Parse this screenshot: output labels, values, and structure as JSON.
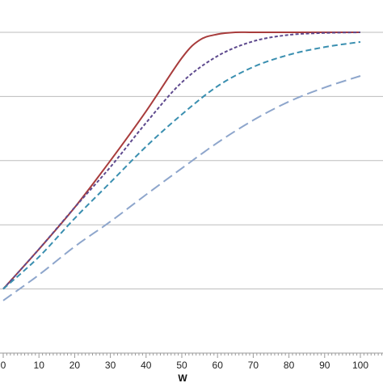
{
  "chart_data": {
    "type": "line",
    "xlabel": "W",
    "ylabel": "",
    "title": "",
    "xlim": [
      0,
      100
    ],
    "x_ticks": [
      0,
      10,
      20,
      30,
      40,
      50,
      60,
      70,
      80,
      90,
      100
    ],
    "x_tick_labels": [
      "0",
      "10",
      "20",
      "30",
      "40",
      "50",
      "60",
      "70",
      "80",
      "90",
      "100"
    ],
    "ylim": [
      0,
      5
    ],
    "y_gridlines": [
      1,
      2,
      3,
      4,
      5
    ],
    "grid": true,
    "legend": "none",
    "series": [
      {
        "color": "#a83c3c",
        "dash": "solid",
        "x": [
          0,
          10,
          20,
          30,
          40,
          50,
          55,
          60,
          65,
          70,
          80,
          90,
          100
        ],
        "y": [
          1.0,
          1.62,
          2.27,
          3.0,
          3.77,
          4.6,
          4.88,
          4.97,
          5.0,
          5.0,
          5.0,
          5.0,
          5.0
        ]
      },
      {
        "color": "#5e4a8e",
        "dash": "dotted",
        "x": [
          0,
          10,
          20,
          30,
          40,
          50,
          60,
          70,
          80,
          90,
          100
        ],
        "y": [
          1.0,
          1.62,
          2.27,
          2.9,
          3.59,
          4.22,
          4.63,
          4.86,
          4.96,
          4.99,
          5.0
        ]
      },
      {
        "color": "#3a8fb0",
        "dash": "dashed",
        "x": [
          0,
          10,
          20,
          30,
          40,
          50,
          60,
          70,
          80,
          90,
          100
        ],
        "y": [
          1.0,
          1.5,
          2.1,
          2.66,
          3.22,
          3.72,
          4.16,
          4.46,
          4.65,
          4.77,
          4.85
        ]
      },
      {
        "color": "#8ea6cc",
        "dash": "long-dashed",
        "x": [
          0,
          10,
          20,
          30,
          40,
          50,
          60,
          70,
          80,
          90,
          100
        ],
        "y": [
          0.82,
          1.22,
          1.66,
          2.05,
          2.47,
          2.88,
          3.28,
          3.63,
          3.92,
          4.14,
          4.32
        ]
      }
    ]
  }
}
